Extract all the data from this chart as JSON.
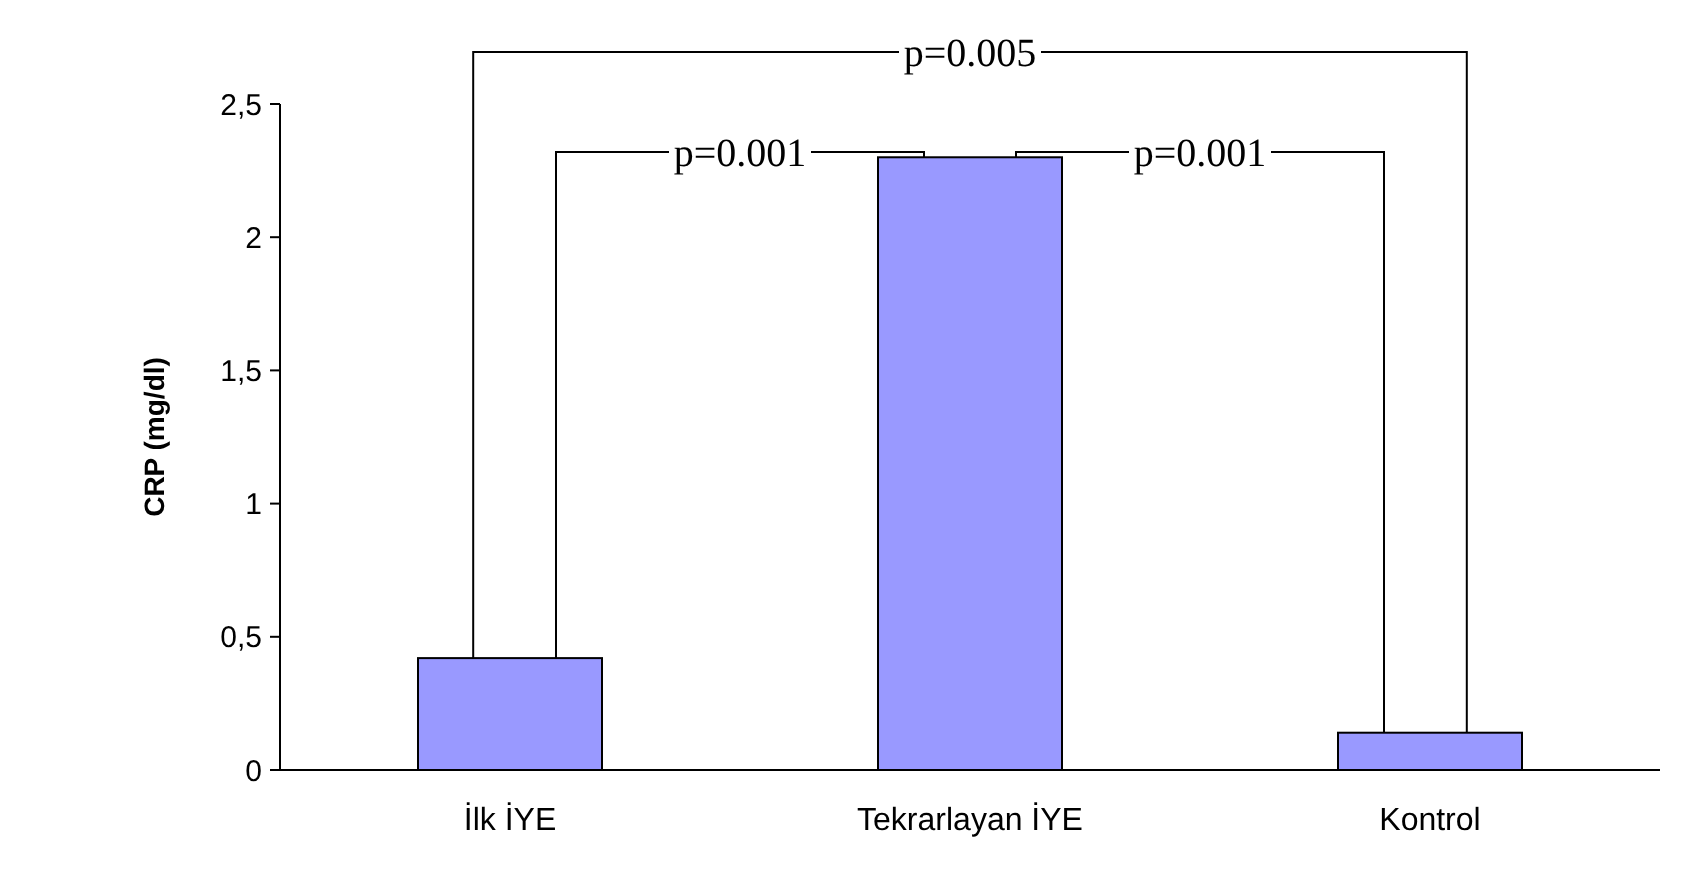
{
  "chart_data": {
    "type": "bar",
    "ylabel": "CRP (mg/dl)",
    "categories": [
      "İlk İYE",
      "Tekrarlayan İYE",
      "Kontrol"
    ],
    "values": [
      0.42,
      2.3,
      0.14
    ],
    "color": "#9999ff",
    "ylim": [
      0,
      2.5
    ],
    "yticks": [
      0,
      {
        "value": 0.5,
        "label": "0,5"
      },
      1,
      {
        "value": 1.5,
        "label": "1,5"
      },
      2,
      {
        "value": 2.5,
        "label": "2,5"
      }
    ],
    "grid": false,
    "annotations": [
      "p=0.001",
      "p=0.005",
      "p=0.001"
    ]
  }
}
